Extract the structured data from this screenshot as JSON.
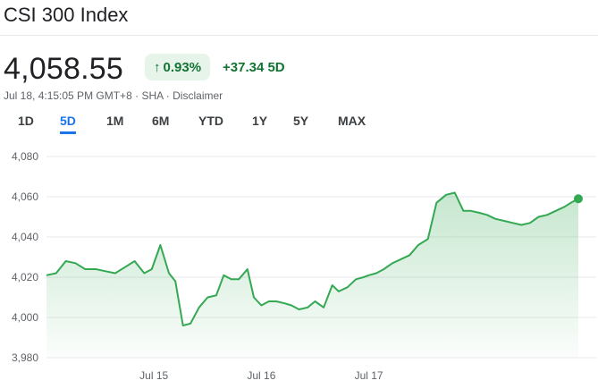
{
  "header": {
    "title": "CSI 300 Index"
  },
  "quote": {
    "price": "4,058.55",
    "percent_change": "0.93%",
    "abs_change": "+37.34",
    "period": "5D",
    "timestamp": "Jul 18, 4:15:05 PM GMT+8",
    "exchange": "SHA",
    "disclaimer": "Disclaimer",
    "sep": "·",
    "up_arrow_icon": "arrow-up-icon",
    "colors": {
      "up": "#137333",
      "up_bg": "#e6f4ea",
      "line": "#34a853",
      "accent": "#1a73e8"
    }
  },
  "tabs": [
    {
      "label": "1D",
      "active": false
    },
    {
      "label": "5D",
      "active": true
    },
    {
      "label": "1M",
      "active": false
    },
    {
      "label": "6M",
      "active": false
    },
    {
      "label": "YTD",
      "active": false
    },
    {
      "label": "1Y",
      "active": false
    },
    {
      "label": "5Y",
      "active": false
    },
    {
      "label": "MAX",
      "active": false
    }
  ],
  "chart_data": {
    "type": "area",
    "title": "",
    "xlabel": "",
    "ylabel": "",
    "ylim": [
      3980,
      4080
    ],
    "y_ticks": [
      3980,
      4000,
      4020,
      4040,
      4060,
      4080
    ],
    "y_tick_labels": [
      "3,980",
      "4,000",
      "4,020",
      "4,040",
      "4,060",
      "4,080"
    ],
    "x_tick_labels": [
      "Jul 15",
      "Jul 16",
      "Jul 17"
    ],
    "x_tick_positions": [
      1,
      2,
      3
    ],
    "x_range": [
      0,
      5
    ],
    "grid": true,
    "series": [
      {
        "x": [
          0.0,
          0.09,
          0.18,
          0.27,
          0.36,
          0.46,
          0.55,
          0.64,
          0.73,
          0.82,
          0.91,
          0.98,
          1.06,
          1.14,
          1.2,
          1.27,
          1.34,
          1.42,
          1.5,
          1.58,
          1.65,
          1.72,
          1.79,
          1.87,
          1.93,
          2.0,
          2.07,
          2.14,
          2.22,
          2.28,
          2.35,
          2.43,
          2.5,
          2.58,
          2.66,
          2.72,
          2.8,
          2.88,
          2.95,
          3.0,
          3.07,
          3.14,
          3.22,
          3.3,
          3.38,
          3.46,
          3.55,
          3.63,
          3.72,
          3.8,
          3.88,
          3.95,
          4.03,
          4.1,
          4.18,
          4.26,
          4.34,
          4.42,
          4.5,
          4.58,
          4.66,
          4.74,
          4.82,
          4.88,
          4.95
        ],
        "y": [
          4021,
          4022,
          4028,
          4027,
          4024,
          4024,
          4023,
          4022,
          4025,
          4028,
          4022,
          4024,
          4036,
          4022,
          4018,
          3996,
          3997,
          4005,
          4010,
          4011,
          4021,
          4019,
          4019,
          4024,
          4010,
          4006,
          4008,
          4008,
          4007,
          4006,
          4004,
          4005,
          4008,
          4005,
          4016,
          4013,
          4015,
          4019,
          4020,
          4021,
          4022,
          4024,
          4027,
          4029,
          4031,
          4036,
          4039,
          4057,
          4061,
          4062,
          4053,
          4053,
          4052,
          4051,
          4049,
          4048,
          4047,
          4046,
          4047,
          4050,
          4051,
          4053,
          4055,
          4057,
          4059
        ]
      }
    ],
    "last_value": 4058.55
  }
}
